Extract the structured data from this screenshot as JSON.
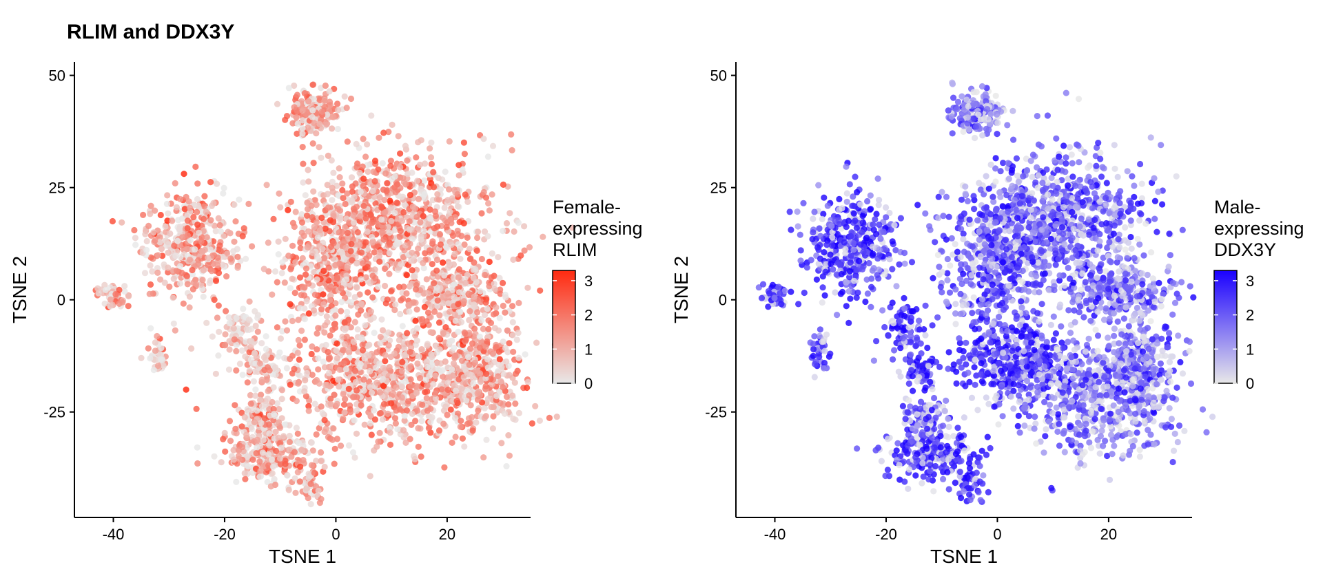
{
  "title": "RLIM and DDX3Y",
  "chart_data": [
    {
      "type": "scatter",
      "title": "",
      "xlabel": "TSNE 1",
      "ylabel": "TSNE 2",
      "xlim": [
        -47,
        35
      ],
      "ylim": [
        -48.5,
        53
      ],
      "xticks": [
        -40,
        -20,
        0,
        20
      ],
      "yticks": [
        -25,
        0,
        25,
        50
      ],
      "xtick_labels": [
        "-40",
        "-20",
        "0",
        "20"
      ],
      "ytick_labels": [
        "-25",
        "0",
        "25",
        "50"
      ],
      "legend": {
        "title": [
          "Female-",
          "expressing",
          "RLIM"
        ],
        "ticks": [
          0,
          1,
          2,
          3
        ],
        "tick_labels": [
          "0",
          "1",
          "2",
          "3"
        ],
        "range": [
          0,
          3.3
        ],
        "low_color": "#e8e8e8",
        "high_color": "#ff2a10",
        "placement": "right"
      },
      "clusters": [
        {
          "cx": 11,
          "cy": 17,
          "sx": 11,
          "sy": 11,
          "n": 850,
          "level": 1.4
        },
        {
          "cx": -1,
          "cy": 8,
          "sx": 6,
          "sy": 11,
          "n": 380,
          "level": 1.5
        },
        {
          "cx": 10,
          "cy": -18,
          "sx": 14,
          "sy": 9,
          "n": 900,
          "level": 1.3
        },
        {
          "cx": 22,
          "cy": 1,
          "sx": 6,
          "sy": 4,
          "n": 260,
          "level": 1.5
        },
        {
          "cx": 26,
          "cy": -16,
          "sx": 4.5,
          "sy": 8,
          "n": 280,
          "level": 1.3
        },
        {
          "cx": -4,
          "cy": 42,
          "sx": 3.2,
          "sy": 3.5,
          "n": 170,
          "level": 1.3
        },
        {
          "cx": -26,
          "cy": 12,
          "sx": 5.5,
          "sy": 8,
          "n": 380,
          "level": 1.4
        },
        {
          "cx": -40,
          "cy": 1,
          "sx": 2,
          "sy": 1.6,
          "n": 45,
          "level": 1.3
        },
        {
          "cx": -32,
          "cy": -12,
          "sx": 1.2,
          "sy": 3,
          "n": 40,
          "level": 1.2
        },
        {
          "cx": -17,
          "cy": -7,
          "sx": 2.5,
          "sy": 4,
          "n": 80,
          "level": 0.8
        },
        {
          "cx": -13,
          "cy": -15,
          "sx": 2.2,
          "sy": 3,
          "n": 60,
          "level": 0.8
        },
        {
          "cx": -12,
          "cy": -34,
          "sx": 6,
          "sy": 4,
          "n": 240,
          "level": 1.1
        },
        {
          "cx": -13,
          "cy": -26,
          "sx": 2.5,
          "sy": 3,
          "n": 80,
          "level": 1.1
        },
        {
          "cx": -5,
          "cy": -41,
          "sx": 1.8,
          "sy": 2.5,
          "n": 45,
          "level": 1.2
        }
      ]
    },
    {
      "type": "scatter",
      "title": "",
      "xlabel": "TSNE 1",
      "ylabel": "TSNE 2",
      "xlim": [
        -47,
        35
      ],
      "ylim": [
        -48.5,
        53
      ],
      "xticks": [
        -40,
        -20,
        0,
        20
      ],
      "yticks": [
        -25,
        0,
        25,
        50
      ],
      "xtick_labels": [
        "-40",
        "-20",
        "0",
        "20"
      ],
      "ytick_labels": [
        "-25",
        "0",
        "25",
        "50"
      ],
      "legend": {
        "title": [
          "Male-",
          "expressing",
          "DDX3Y"
        ],
        "ticks": [
          0,
          1,
          2,
          3
        ],
        "tick_labels": [
          "0",
          "1",
          "2",
          "3"
        ],
        "range": [
          0,
          3.3
        ],
        "low_color": "#e8e8e8",
        "high_color": "#1a00ff",
        "placement": "right"
      },
      "clusters": [
        {
          "cx": 11,
          "cy": 17,
          "sx": 11,
          "sy": 11,
          "n": 850,
          "level": 2.0
        },
        {
          "cx": -1,
          "cy": 8,
          "sx": 6,
          "sy": 11,
          "n": 380,
          "level": 2.2
        },
        {
          "cx": 4,
          "cy": -14,
          "sx": 7,
          "sy": 6,
          "n": 450,
          "level": 2.6
        },
        {
          "cx": 17,
          "cy": -22,
          "sx": 9,
          "sy": 9,
          "n": 500,
          "level": 1.5
        },
        {
          "cx": 22,
          "cy": 1,
          "sx": 6,
          "sy": 4,
          "n": 260,
          "level": 1.9
        },
        {
          "cx": 26,
          "cy": -16,
          "sx": 4.5,
          "sy": 8,
          "n": 280,
          "level": 1.9
        },
        {
          "cx": -4,
          "cy": 42,
          "sx": 3.2,
          "sy": 3.5,
          "n": 170,
          "level": 1.6
        },
        {
          "cx": -26,
          "cy": 12,
          "sx": 5.5,
          "sy": 8,
          "n": 380,
          "level": 2.6
        },
        {
          "cx": -40,
          "cy": 1,
          "sx": 2,
          "sy": 1.6,
          "n": 45,
          "level": 2.6
        },
        {
          "cx": -32,
          "cy": -12,
          "sx": 1.2,
          "sy": 3,
          "n": 40,
          "level": 2.5
        },
        {
          "cx": -17,
          "cy": -7,
          "sx": 2.5,
          "sy": 4,
          "n": 80,
          "level": 2.6
        },
        {
          "cx": -13,
          "cy": -15,
          "sx": 2.2,
          "sy": 3,
          "n": 60,
          "level": 2.6
        },
        {
          "cx": -12,
          "cy": -34,
          "sx": 6,
          "sy": 4,
          "n": 240,
          "level": 2.6
        },
        {
          "cx": -13,
          "cy": -26,
          "sx": 2.5,
          "sy": 3,
          "n": 80,
          "level": 2.0
        },
        {
          "cx": -5,
          "cy": -41,
          "sx": 1.8,
          "sy": 2.5,
          "n": 45,
          "level": 2.7
        }
      ]
    }
  ]
}
